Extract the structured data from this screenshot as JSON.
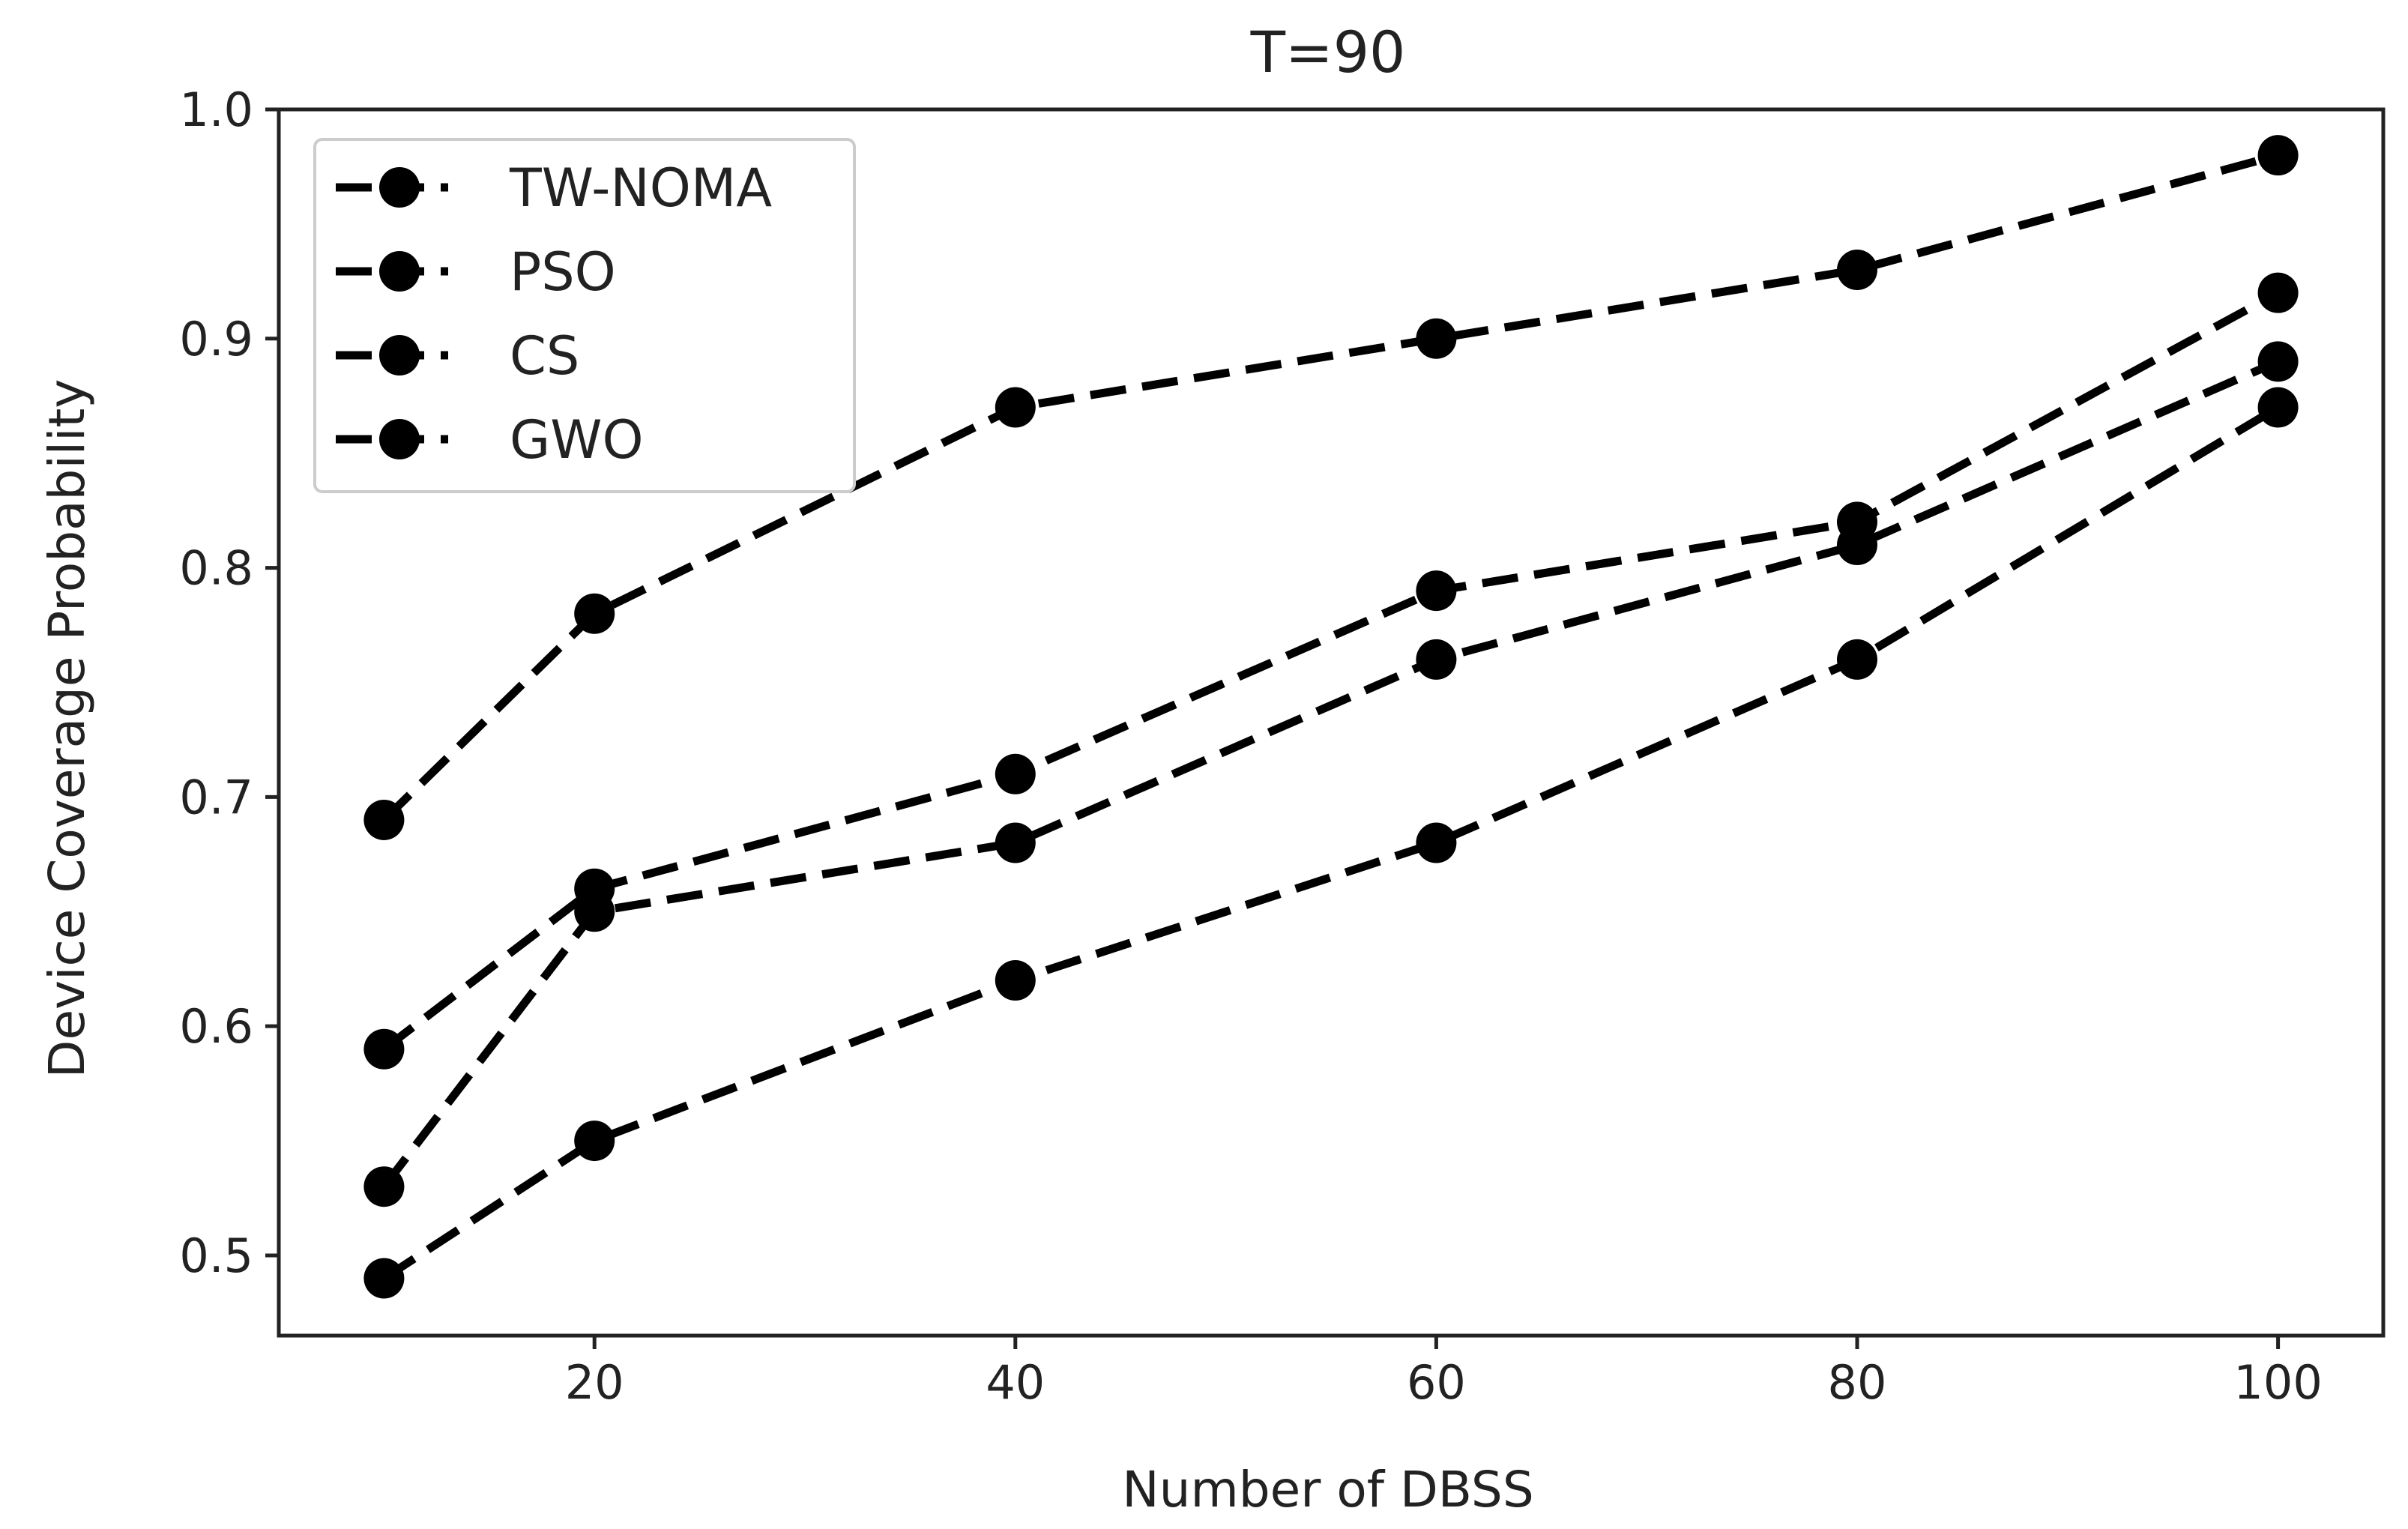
{
  "chart_data": {
    "type": "line",
    "title": "T=90",
    "xlabel": "Number of DBSS",
    "ylabel": "Device Coverage Probability",
    "x": [
      10,
      20,
      40,
      60,
      80,
      100
    ],
    "xticks": [
      20,
      40,
      60,
      80,
      100
    ],
    "xtick_labels": [
      "20",
      "40",
      "60",
      "80",
      "100"
    ],
    "xlim": [
      5,
      105
    ],
    "yticks": [
      0.5,
      0.6,
      0.7,
      0.8,
      0.9,
      1.0
    ],
    "ytick_labels": [
      "0.5",
      "0.6",
      "0.7",
      "0.8",
      "0.9",
      "1.0"
    ],
    "ylim": [
      0.465,
      1.0
    ],
    "legend_position": "upper-left",
    "series": [
      {
        "name": "TW-NOMA",
        "values": [
          0.69,
          0.78,
          0.87,
          0.9,
          0.93,
          0.98
        ]
      },
      {
        "name": "PSO",
        "values": [
          0.59,
          0.66,
          0.71,
          0.79,
          0.82,
          0.92
        ]
      },
      {
        "name": "CS",
        "values": [
          0.53,
          0.65,
          0.68,
          0.76,
          0.81,
          0.89
        ]
      },
      {
        "name": "GWO",
        "values": [
          0.49,
          0.55,
          0.62,
          0.68,
          0.76,
          0.87
        ]
      }
    ],
    "line_color": "#000000",
    "line_style": "dashed",
    "marker": "circle"
  }
}
